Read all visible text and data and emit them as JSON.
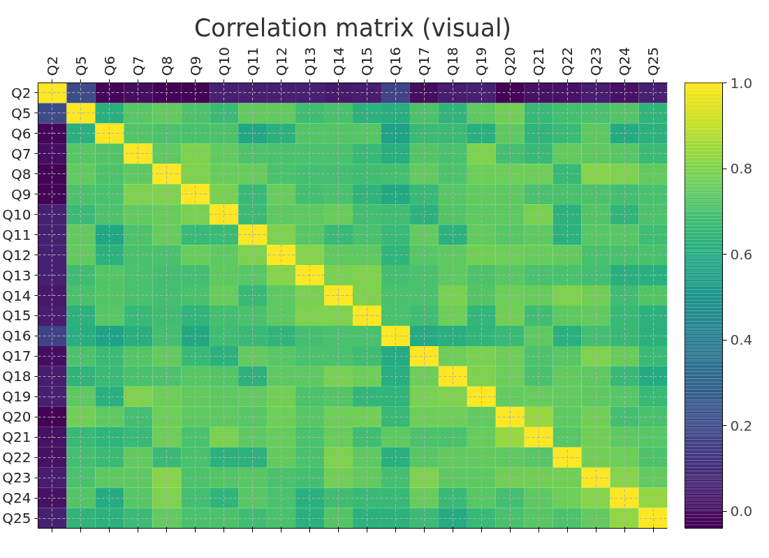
{
  "chart_data": {
    "type": "heatmap",
    "title": "Correlation matrix (visual)",
    "categories": [
      "Q2",
      "Q5",
      "Q6",
      "Q7",
      "Q8",
      "Q9",
      "Q10",
      "Q11",
      "Q12",
      "Q13",
      "Q14",
      "Q15",
      "Q16",
      "Q17",
      "Q18",
      "Q19",
      "Q20",
      "Q21",
      "Q22",
      "Q23",
      "Q24",
      "Q25"
    ],
    "y_categories": [
      "Q2",
      "Q5",
      "Q6",
      "Q7",
      "Q8",
      "Q9",
      "Q10",
      "Q11",
      "Q12",
      "Q13",
      "Q14",
      "Q15",
      "Q16",
      "Q17",
      "Q18",
      "Q19",
      "Q20",
      "Q21",
      "Q22",
      "Q23",
      "Q24",
      "Q25"
    ],
    "cells": [
      [
        1.0,
        0.2,
        -0.02,
        0.0,
        -0.03,
        -0.03,
        0.05,
        0.05,
        0.05,
        0.05,
        0.03,
        0.04,
        0.17,
        0.0,
        0.04,
        0.05,
        -0.03,
        0.01,
        0.01,
        0.04,
        0.01,
        0.05
      ],
      [
        0.2,
        1.0,
        0.62,
        0.73,
        0.75,
        0.71,
        0.67,
        0.75,
        0.75,
        0.68,
        0.7,
        0.63,
        0.61,
        0.71,
        0.64,
        0.74,
        0.78,
        0.66,
        0.69,
        0.7,
        0.72,
        0.64
      ],
      [
        -0.02,
        0.62,
        1.0,
        0.72,
        0.71,
        0.7,
        0.71,
        0.58,
        0.63,
        0.72,
        0.72,
        0.73,
        0.56,
        0.67,
        0.67,
        0.62,
        0.74,
        0.64,
        0.67,
        0.74,
        0.6,
        0.63
      ],
      [
        0.0,
        0.73,
        0.72,
        1.0,
        0.74,
        0.8,
        0.75,
        0.71,
        0.7,
        0.7,
        0.7,
        0.66,
        0.61,
        0.72,
        0.7,
        0.8,
        0.69,
        0.66,
        0.75,
        0.74,
        0.73,
        0.67
      ],
      [
        -0.03,
        0.75,
        0.71,
        0.74,
        1.0,
        0.8,
        0.76,
        0.76,
        0.7,
        0.69,
        0.69,
        0.68,
        0.69,
        0.75,
        0.71,
        0.77,
        0.77,
        0.77,
        0.66,
        0.81,
        0.8,
        0.75
      ],
      [
        -0.03,
        0.71,
        0.7,
        0.8,
        0.8,
        1.0,
        0.79,
        0.66,
        0.76,
        0.69,
        0.7,
        0.64,
        0.59,
        0.66,
        0.73,
        0.75,
        0.74,
        0.7,
        0.7,
        0.71,
        0.69,
        0.7
      ],
      [
        0.05,
        0.67,
        0.71,
        0.75,
        0.76,
        0.79,
        1.0,
        0.67,
        0.74,
        0.74,
        0.76,
        0.69,
        0.68,
        0.63,
        0.72,
        0.74,
        0.74,
        0.79,
        0.63,
        0.72,
        0.64,
        0.71
      ],
      [
        0.05,
        0.75,
        0.58,
        0.71,
        0.76,
        0.66,
        0.67,
        1.0,
        0.8,
        0.73,
        0.66,
        0.7,
        0.66,
        0.75,
        0.63,
        0.75,
        0.73,
        0.74,
        0.63,
        0.73,
        0.73,
        0.68
      ],
      [
        0.05,
        0.75,
        0.63,
        0.7,
        0.7,
        0.76,
        0.74,
        0.8,
        1.0,
        0.81,
        0.74,
        0.74,
        0.64,
        0.73,
        0.74,
        0.78,
        0.77,
        0.76,
        0.75,
        0.7,
        0.7,
        0.7
      ],
      [
        0.05,
        0.68,
        0.72,
        0.7,
        0.69,
        0.69,
        0.74,
        0.73,
        0.81,
        1.0,
        0.79,
        0.8,
        0.69,
        0.7,
        0.74,
        0.71,
        0.73,
        0.7,
        0.7,
        0.69,
        0.62,
        0.62
      ],
      [
        0.03,
        0.7,
        0.72,
        0.7,
        0.69,
        0.7,
        0.76,
        0.66,
        0.74,
        0.79,
        1.0,
        0.8,
        0.7,
        0.7,
        0.79,
        0.72,
        0.77,
        0.76,
        0.8,
        0.78,
        0.68,
        0.72
      ],
      [
        0.04,
        0.63,
        0.73,
        0.66,
        0.68,
        0.64,
        0.69,
        0.7,
        0.74,
        0.8,
        0.8,
        1.0,
        0.7,
        0.68,
        0.77,
        0.65,
        0.78,
        0.68,
        0.74,
        0.75,
        0.66,
        0.63
      ],
      [
        0.17,
        0.61,
        0.56,
        0.61,
        0.69,
        0.59,
        0.68,
        0.66,
        0.64,
        0.69,
        0.7,
        0.7,
        1.0,
        0.6,
        0.61,
        0.64,
        0.66,
        0.74,
        0.62,
        0.69,
        0.66,
        0.63
      ],
      [
        0.0,
        0.71,
        0.67,
        0.72,
        0.75,
        0.66,
        0.63,
        0.75,
        0.73,
        0.7,
        0.7,
        0.68,
        0.6,
        1.0,
        0.77,
        0.79,
        0.77,
        0.71,
        0.73,
        0.8,
        0.76,
        0.67
      ],
      [
        0.04,
        0.64,
        0.67,
        0.7,
        0.71,
        0.73,
        0.72,
        0.63,
        0.74,
        0.74,
        0.79,
        0.77,
        0.61,
        0.77,
        1.0,
        0.8,
        0.77,
        0.7,
        0.75,
        0.74,
        0.66,
        0.6
      ],
      [
        0.05,
        0.74,
        0.62,
        0.8,
        0.77,
        0.75,
        0.74,
        0.75,
        0.78,
        0.71,
        0.72,
        0.65,
        0.64,
        0.79,
        0.8,
        1.0,
        0.75,
        0.76,
        0.75,
        0.74,
        0.73,
        0.66
      ],
      [
        -0.03,
        0.78,
        0.74,
        0.69,
        0.77,
        0.74,
        0.74,
        0.73,
        0.77,
        0.73,
        0.77,
        0.78,
        0.66,
        0.77,
        0.77,
        0.75,
        1.0,
        0.84,
        0.74,
        0.78,
        0.69,
        0.7
      ],
      [
        0.01,
        0.66,
        0.64,
        0.66,
        0.77,
        0.7,
        0.79,
        0.74,
        0.76,
        0.7,
        0.76,
        0.68,
        0.74,
        0.71,
        0.7,
        0.76,
        0.84,
        1.0,
        0.73,
        0.78,
        0.74,
        0.73
      ],
      [
        0.01,
        0.69,
        0.67,
        0.75,
        0.66,
        0.7,
        0.63,
        0.63,
        0.75,
        0.7,
        0.8,
        0.74,
        0.62,
        0.73,
        0.75,
        0.75,
        0.74,
        0.73,
        1.0,
        0.78,
        0.77,
        0.71
      ],
      [
        0.04,
        0.7,
        0.74,
        0.74,
        0.81,
        0.71,
        0.72,
        0.73,
        0.7,
        0.69,
        0.78,
        0.75,
        0.69,
        0.8,
        0.74,
        0.74,
        0.78,
        0.78,
        0.78,
        1.0,
        0.81,
        0.75
      ],
      [
        0.01,
        0.72,
        0.6,
        0.73,
        0.8,
        0.69,
        0.64,
        0.73,
        0.7,
        0.62,
        0.68,
        0.66,
        0.66,
        0.76,
        0.66,
        0.73,
        0.69,
        0.74,
        0.77,
        0.81,
        1.0,
        0.83
      ],
      [
        0.05,
        0.64,
        0.63,
        0.67,
        0.75,
        0.7,
        0.71,
        0.68,
        0.7,
        0.62,
        0.72,
        0.63,
        0.63,
        0.67,
        0.6,
        0.66,
        0.7,
        0.73,
        0.71,
        0.75,
        0.83,
        1.0
      ]
    ],
    "clim": [
      -0.04,
      1.0
    ],
    "cticks": [
      {
        "value": 0,
        "label": "0.0"
      },
      0.2,
      0.4,
      0.6,
      0.8,
      {
        "value": 1,
        "label": "1.0"
      }
    ],
    "grid": true
  }
}
